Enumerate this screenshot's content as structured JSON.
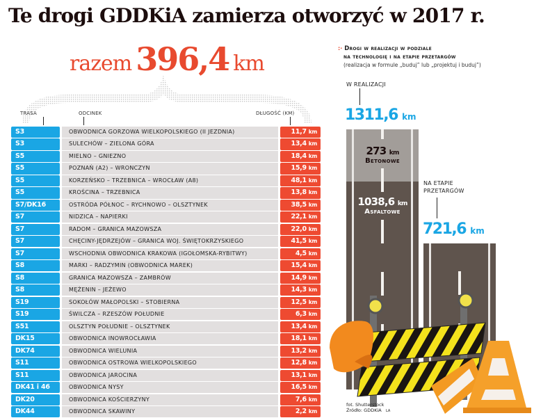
{
  "title": "Te drogi GDDKiA zamierza otworzyć w 2017 r.",
  "total": {
    "label": "razem",
    "value": "396,4",
    "unit": "km"
  },
  "table": {
    "headers": {
      "route": "TRASA",
      "section": "ODCINEK",
      "length": "DŁUGOŚĆ (KM)"
    },
    "rows": [
      {
        "route": "S3",
        "section": "OBWODNICA GORZOWA WIELKOPOLSKIEGO (II JEZDNIA)",
        "length": "11,7",
        "unit": "km"
      },
      {
        "route": "S3",
        "section": "SULECHÓW – ZIELONA GÓRA",
        "length": "13,4",
        "unit": "km"
      },
      {
        "route": "S5",
        "section": "MIELNO – GNIEZNO",
        "length": "18,4",
        "unit": "km"
      },
      {
        "route": "S5",
        "section": "POZNAŃ (A2) – WRONCZYN",
        "length": "15,9",
        "unit": "km"
      },
      {
        "route": "S5",
        "section": "KORZEŃSKO – TRZEBNICA – WROCŁAW (A8)",
        "length": "48,1",
        "unit": "km"
      },
      {
        "route": "S5",
        "section": "KROŚCINA – TRZEBNICA",
        "length": "13,8",
        "unit": "km"
      },
      {
        "route": "S7/DK16",
        "section": "OSTRÓDA PÓŁNOC – RYCHNOWO – OLSZTYNEK",
        "length": "38,5",
        "unit": "km"
      },
      {
        "route": "S7",
        "section": "NIDZICA – NAPIERKI",
        "length": "22,1",
        "unit": "km"
      },
      {
        "route": "S7",
        "section": "RADOM – GRANICA MAZOWSZA",
        "length": "22,0",
        "unit": "km"
      },
      {
        "route": "S7",
        "section": "CHĘCINY-JĘDRZEJÓW – GRANICA WOJ. ŚWIĘTOKRZYSKIEGO",
        "length": "41,5",
        "unit": "km"
      },
      {
        "route": "S7",
        "section": "WSCHODNIA OBWODNICA KRAKOWA (IGOŁOMSKA-RYBITWY)",
        "length": "4,5",
        "unit": "km"
      },
      {
        "route": "S8",
        "section": "MARKI – RADZYMIN (OBWODNICA MAREK)",
        "length": "15,4",
        "unit": "km"
      },
      {
        "route": "S8",
        "section": "GRANICA MAZOWSZA – ZAMBRÓW",
        "length": "14,9",
        "unit": "km"
      },
      {
        "route": "S8",
        "section": "MĘŻENIN – JEŻEWO",
        "length": "14,3",
        "unit": "km"
      },
      {
        "route": "S19",
        "section": "SOKOŁÓW MAŁOPOLSKI – STOBIERNA",
        "length": "12,5",
        "unit": "km"
      },
      {
        "route": "S19",
        "section": "ŚWILCZA – RZESZÓW POŁUDNIE",
        "length": "6,3",
        "unit": "km"
      },
      {
        "route": "S51",
        "section": "OLSZTYN POŁUDNIE – OLSZTYNEK",
        "length": "13,4",
        "unit": "km"
      },
      {
        "route": "DK15",
        "section": "OBWODNICA INOWROCŁAWIA",
        "length": "18,1",
        "unit": "km"
      },
      {
        "route": "DK74",
        "section": "OBWODNICA WIELUNIA",
        "length": "13,2",
        "unit": "km"
      },
      {
        "route": "S11",
        "section": "OBWODNICA OSTROWA WIELKOPOLSKIEGO",
        "length": "12,8",
        "unit": "km"
      },
      {
        "route": "S11",
        "section": "OBWODNICA JAROCINA",
        "length": "13,1",
        "unit": "km"
      },
      {
        "route": "DK41 i 46",
        "section": "OBWODNICA NYSY",
        "length": "16,5",
        "unit": "km"
      },
      {
        "route": "DK20",
        "section": "OBWODNICA KOŚCIERZYNY",
        "length": "7,6",
        "unit": "km"
      },
      {
        "route": "DK44",
        "section": "OBWODNICA SKAWINY",
        "length": "2,2",
        "unit": "km"
      }
    ]
  },
  "right_panel": {
    "heading_line1": "Drogi w realizacji w podziale",
    "heading_line2": "na technologię i na etapie przetargów",
    "subheading": "(realizacja w formule „buduj” lub „projektuj i buduj”)",
    "in_progress": {
      "label": "W REALIZACJI",
      "value": "1311,6",
      "unit": "km"
    },
    "concrete": {
      "value": "273",
      "unit": "km",
      "label": "Betonowe"
    },
    "asphalt": {
      "value": "1038,6",
      "unit": "km",
      "label": "Asfaltowe"
    },
    "tender": {
      "label_line1": "NA ETAPIE",
      "label_line2": "PRZETARGÓW",
      "value": "721,6",
      "unit": "km"
    }
  },
  "credits": {
    "photo": "fot. Shutterstock",
    "source": "Źródło: GDDKiA",
    "initials": "LA"
  },
  "colors": {
    "route_blue": "#1aa6e4",
    "length_red": "#ee4a31",
    "accent_red": "#e84a2f",
    "row_gray": "#e2dfdf",
    "asphalt": "#5f544d",
    "concrete": "#a29d99"
  },
  "chart_data": {
    "type": "table",
    "title": "Te drogi GDDKiA zamierza otworzyć w 2017 r.",
    "total_km": 396.4,
    "columns": [
      "TRASA",
      "ODCINEK",
      "DŁUGOŚĆ (KM)"
    ],
    "rows": [
      [
        "S3",
        "OBWODNICA GORZOWA WIELKOPOLSKIEGO (II JEZDNIA)",
        11.7
      ],
      [
        "S3",
        "SULECHÓW – ZIELONA GÓRA",
        13.4
      ],
      [
        "S5",
        "MIELNO – GNIEZNO",
        18.4
      ],
      [
        "S5",
        "POZNAŃ (A2) – WRONCZYN",
        15.9
      ],
      [
        "S5",
        "KORZEŃSKO – TRZEBNICA – WROCŁAW (A8)",
        48.1
      ],
      [
        "S5",
        "KROŚCINA – TRZEBNICA",
        13.8
      ],
      [
        "S7/DK16",
        "OSTRÓDA PÓŁNOC – RYCHNOWO – OLSZTYNEK",
        38.5
      ],
      [
        "S7",
        "NIDZICA – NAPIERKI",
        22.1
      ],
      [
        "S7",
        "RADOM – GRANICA MAZOWSZA",
        22.0
      ],
      [
        "S7",
        "CHĘCINY-JĘDRZEJÓW – GRANICA WOJ. ŚWIĘTOKRZYSKIEGO",
        41.5
      ],
      [
        "S7",
        "WSCHODNIA OBWODNICA KRAKOWA (IGOŁOMSKA-RYBITWY)",
        4.5
      ],
      [
        "S8",
        "MARKI – RADZYMIN (OBWODNICA MAREK)",
        15.4
      ],
      [
        "S8",
        "GRANICA MAZOWSZA – ZAMBRÓW",
        14.9
      ],
      [
        "S8",
        "MĘŻENIN – JEŻEWO",
        14.3
      ],
      [
        "S19",
        "SOKOŁÓW MAŁOPOLSKI – STOBIERNA",
        12.5
      ],
      [
        "S19",
        "ŚWILCZA – RZESZÓW POŁUDNIE",
        6.3
      ],
      [
        "S51",
        "OLSZTYN POŁUDNIE – OLSZTYNEK",
        13.4
      ],
      [
        "DK15",
        "OBWODNICA INOWROCŁAWIA",
        18.1
      ],
      [
        "DK74",
        "OBWODNICA WIELUNIA",
        13.2
      ],
      [
        "S11",
        "OBWODNICA OSTROWA WIELKOPOLSKIEGO",
        12.8
      ],
      [
        "S11",
        "OBWODNICA JAROCINA",
        13.1
      ],
      [
        "DK41 i 46",
        "OBWODNICA NYSY",
        16.5
      ],
      [
        "DK20",
        "OBWODNICA KOŚCIERZYNY",
        7.6
      ],
      [
        "DK44",
        "OBWODNICA SKAWINY",
        2.2
      ]
    ],
    "side_chart": {
      "type": "bar",
      "title": "Drogi w realizacji w podziale na technologię i na etapie przetargów",
      "subtitle": "(realizacja w formule „buduj” lub „projektuj i buduj”)",
      "categories": [
        "W REALIZACJI",
        "NA ETAPIE PRZETARGÓW"
      ],
      "series": [
        {
          "name": "Betonowe",
          "values": [
            273,
            0
          ]
        },
        {
          "name": "Asfaltowe",
          "values": [
            1038.6,
            0
          ]
        },
        {
          "name": "Przetargi",
          "values": [
            0,
            721.6
          ]
        }
      ],
      "totals": [
        1311.6,
        721.6
      ],
      "unit": "km"
    }
  }
}
